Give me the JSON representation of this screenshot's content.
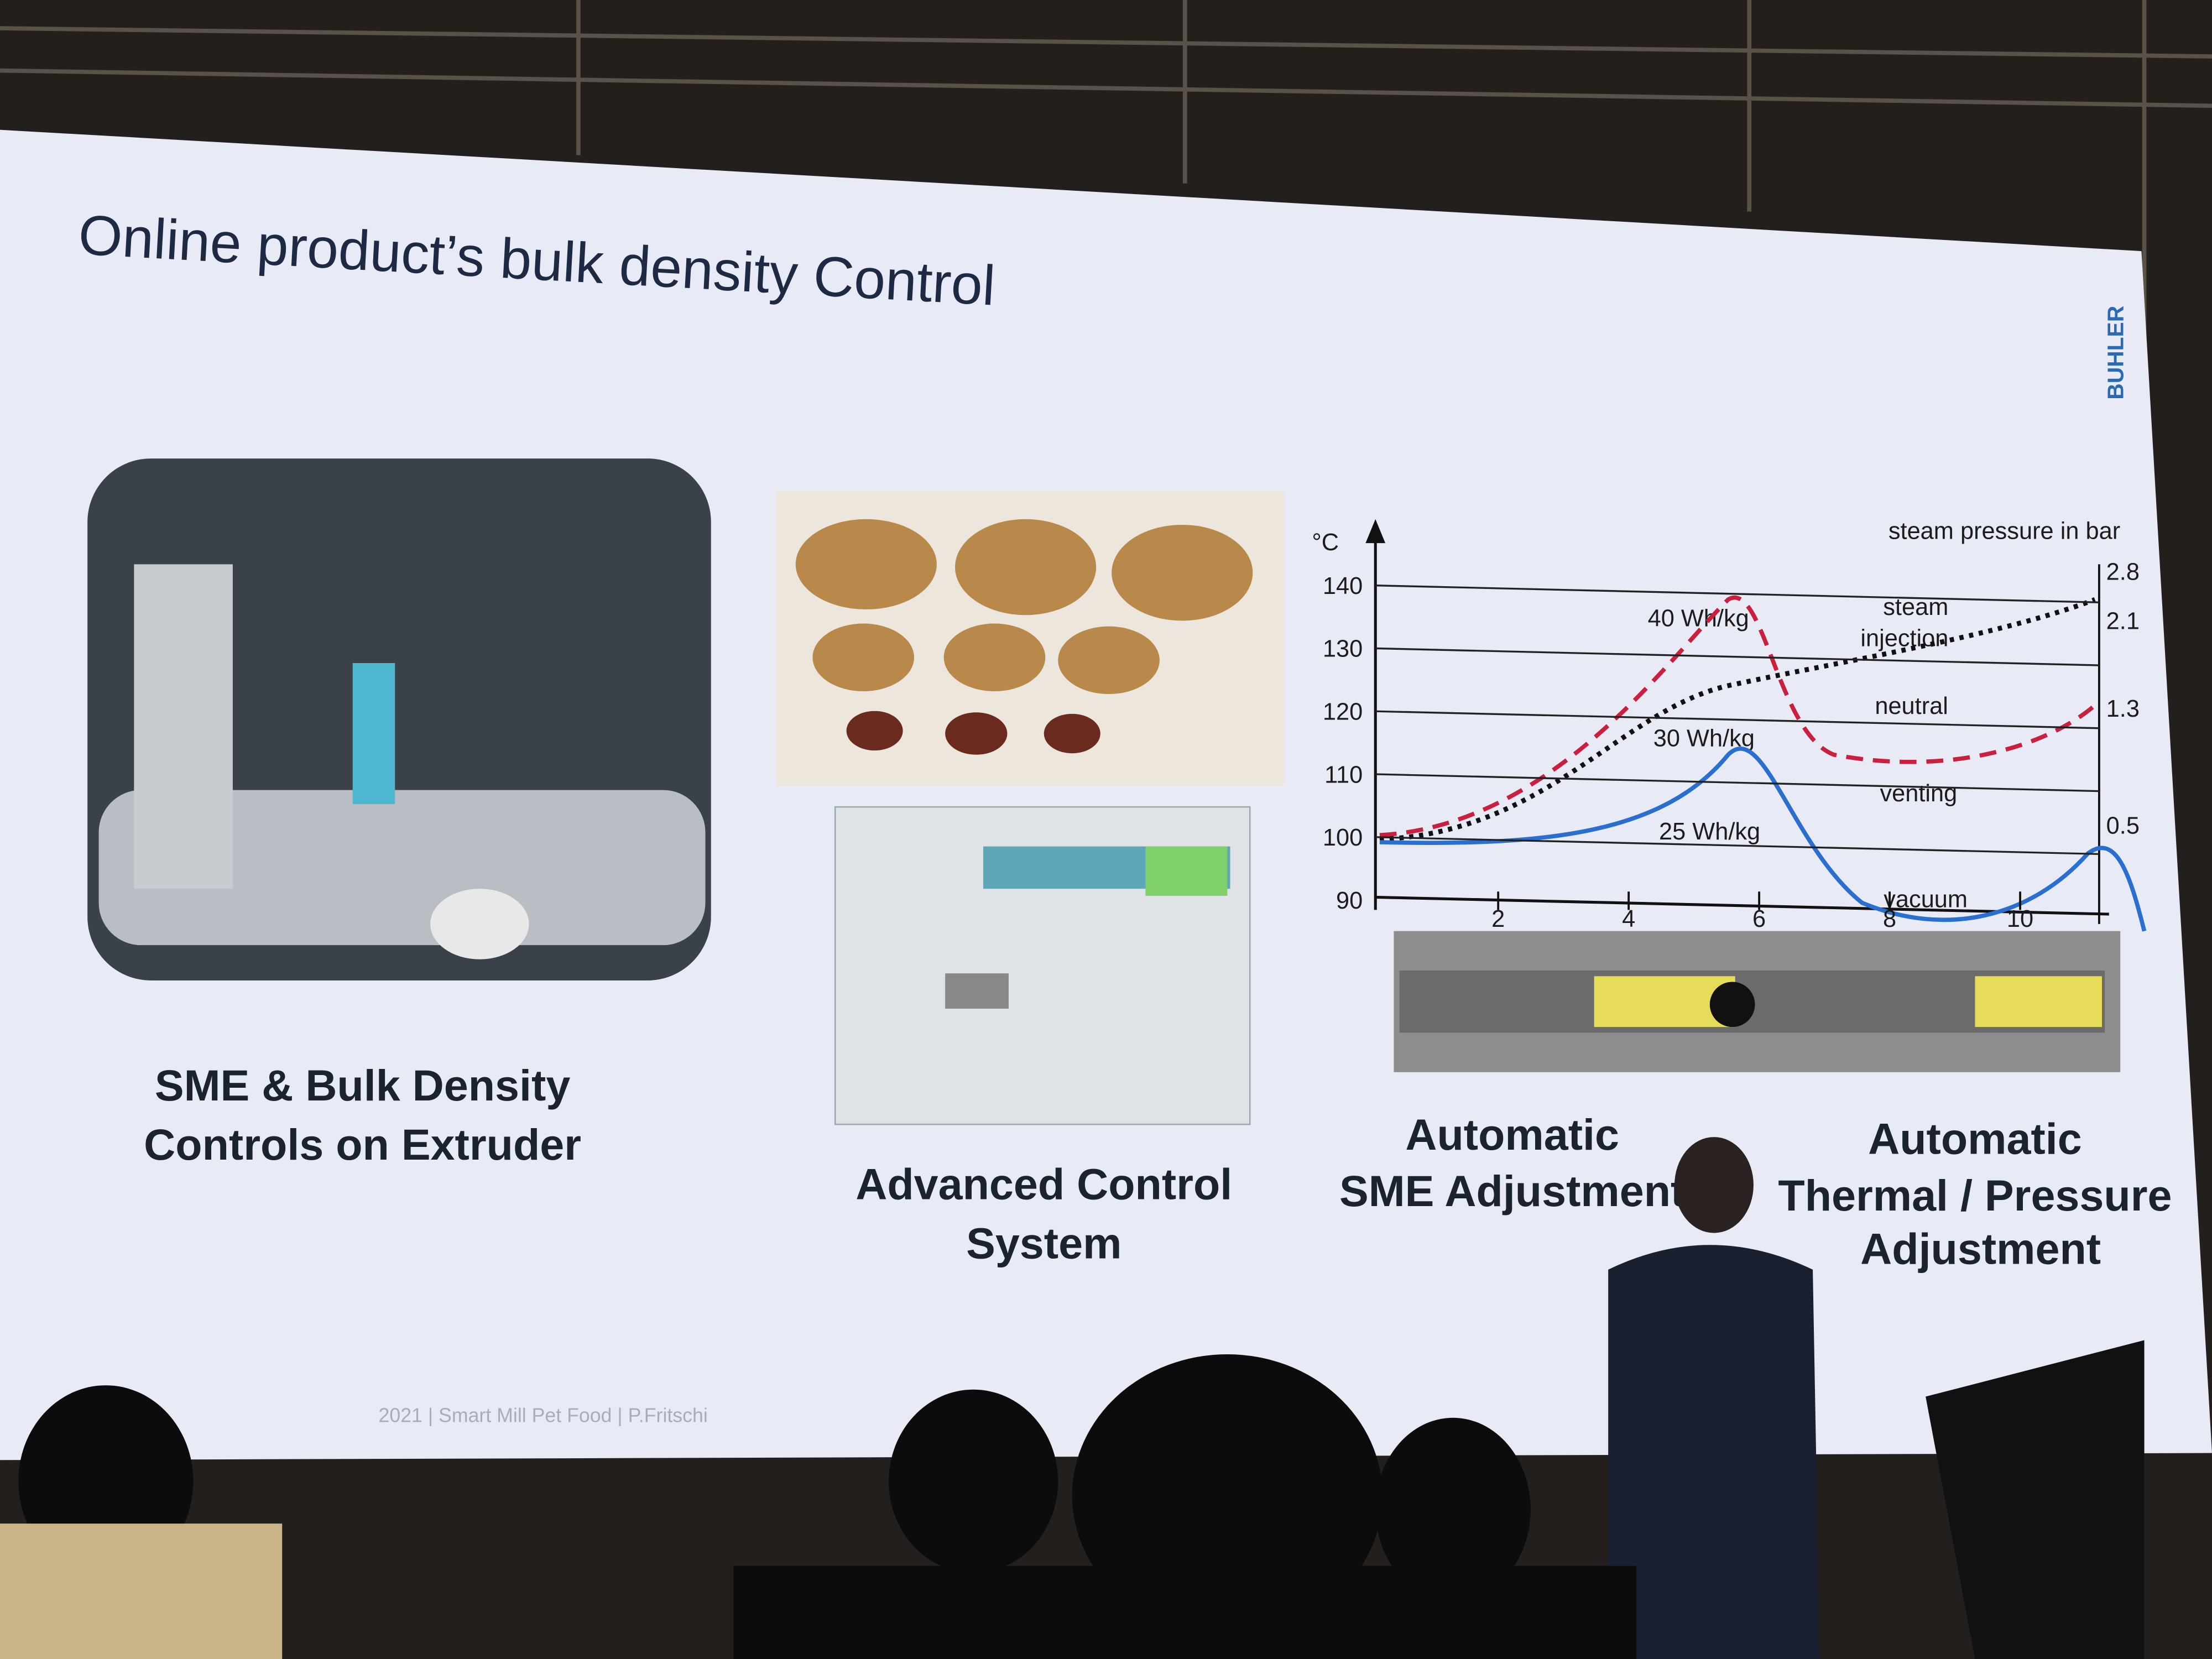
{
  "slide": {
    "title": "Online product’s bulk density Control",
    "logo": "BUHLER",
    "footer": "2021 | Smart Mill Pet Food | P.Fritschi",
    "panels": [
      {
        "caption": [
          "SME & Bulk Density",
          "Controls on Extruder"
        ]
      },
      {
        "caption": [
          "Advanced Control",
          "System"
        ]
      },
      {
        "caption": [
          "Automatic",
          "SME Adjustment"
        ]
      },
      {
        "caption": [
          "Automatic",
          "Thermal / Pressure",
          "Adjustment"
        ]
      }
    ]
  },
  "chart": {
    "y_unit": "°C",
    "yticks": [
      140,
      130,
      120,
      110,
      100,
      90
    ],
    "xticks": [
      2,
      4,
      6,
      8,
      10
    ],
    "right_title": "steam pressure in bar",
    "pressure_labels": [
      2.8,
      2.1,
      1.3,
      0.5
    ],
    "zones": [
      "steam",
      "injection",
      "neutral",
      "venting",
      "vacuum"
    ],
    "curves": [
      "40 Wh/kg",
      "30 Wh/kg",
      "25 Wh/kg"
    ]
  }
}
